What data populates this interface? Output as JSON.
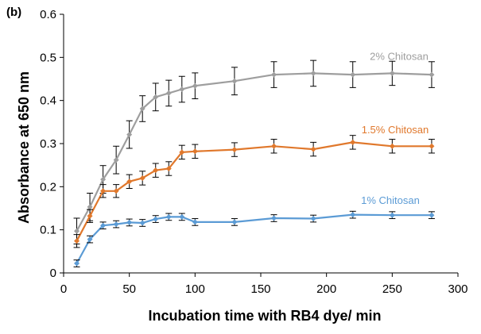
{
  "panel_label": "(b)",
  "chart_data": {
    "type": "line",
    "xlabel": "Incubation time with RB4 dye/ min",
    "ylabel": "Absorbance at 650 nm",
    "xlim": [
      0,
      300
    ],
    "ylim": [
      0,
      0.6
    ],
    "xticks": [
      0,
      50,
      100,
      150,
      200,
      250,
      300
    ],
    "yticks": [
      0,
      0.1,
      0.2,
      0.3,
      0.4,
      0.5,
      0.6
    ],
    "xtick_labels": [
      "0",
      "50",
      "100",
      "150",
      "200",
      "250",
      "300"
    ],
    "ytick_labels": [
      "0",
      "0.1",
      "0.2",
      "0.3",
      "0.4",
      "0.5",
      "0.6"
    ],
    "grid": false,
    "x": [
      10,
      20,
      30,
      40,
      50,
      60,
      70,
      80,
      90,
      100,
      130,
      160,
      190,
      220,
      250,
      280
    ],
    "series": [
      {
        "name": "2% Chitosan",
        "color": "#9e9e9e",
        "values": [
          0.097,
          0.153,
          0.217,
          0.262,
          0.321,
          0.381,
          0.408,
          0.417,
          0.426,
          0.434,
          0.445,
          0.46,
          0.463,
          0.46,
          0.463,
          0.46
        ],
        "errors": [
          0.03,
          0.032,
          0.032,
          0.032,
          0.032,
          0.03,
          0.032,
          0.03,
          0.03,
          0.03,
          0.032,
          0.03,
          0.03,
          0.03,
          0.028,
          0.03
        ]
      },
      {
        "name": "1.5% Chitosan",
        "color": "#e0782c",
        "values": [
          0.074,
          0.132,
          0.19,
          0.19,
          0.212,
          0.22,
          0.238,
          0.242,
          0.28,
          0.282,
          0.286,
          0.294,
          0.287,
          0.303,
          0.294,
          0.294
        ],
        "errors": [
          0.015,
          0.015,
          0.015,
          0.015,
          0.016,
          0.016,
          0.016,
          0.016,
          0.016,
          0.016,
          0.016,
          0.016,
          0.016,
          0.016,
          0.016,
          0.016
        ]
      },
      {
        "name": "1% Chitosan",
        "color": "#5b9bd5",
        "values": [
          0.022,
          0.078,
          0.11,
          0.113,
          0.117,
          0.116,
          0.125,
          0.13,
          0.13,
          0.118,
          0.118,
          0.127,
          0.126,
          0.135,
          0.134,
          0.134
        ],
        "errors": [
          0.008,
          0.008,
          0.008,
          0.008,
          0.008,
          0.008,
          0.008,
          0.008,
          0.008,
          0.008,
          0.008,
          0.008,
          0.008,
          0.008,
          0.008,
          0.008
        ]
      }
    ],
    "axis_color": "#000000"
  }
}
